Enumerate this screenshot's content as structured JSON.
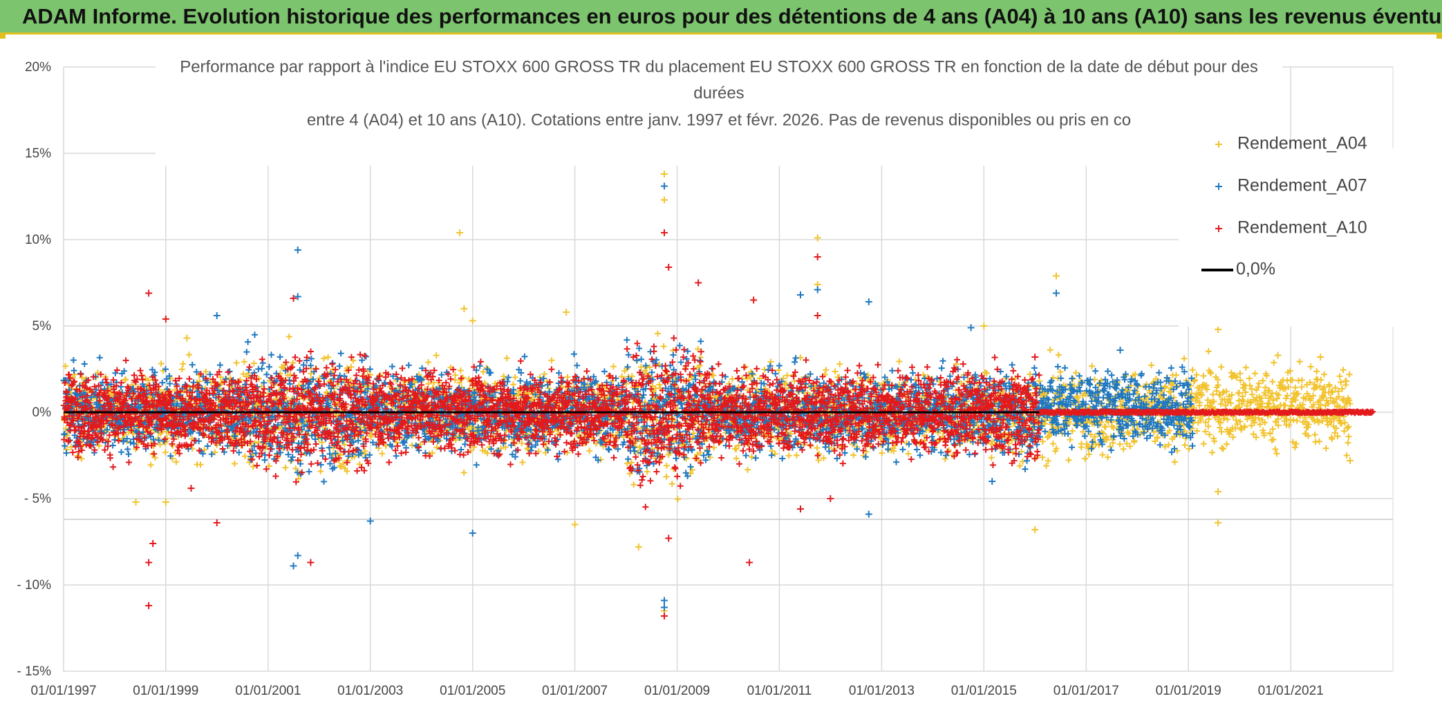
{
  "header": {
    "title": "ADAM Informe. Evolution historique des performances en euros pour des détentions de 4 ans (A04) à 10 ans (A10) sans les revenus éventuels"
  },
  "chart_data": {
    "type": "scatter",
    "title_lines": [
      "Performance par rapport à l'indice EU STOXX 600 GROSS TR  du placement EU STOXX 600 GROSS TR en fonction de la date de début pour des",
      "durées",
      "entre 4 (A04) et 10 ans (A10). Cotations entre janv. 1997 et févr. 2026. Pas de revenus disponibles ou pris en co"
    ],
    "x_tick_labels": [
      "01/01/1997",
      "01/01/1999",
      "01/01/2001",
      "01/01/2003",
      "01/01/2005",
      "01/01/2007",
      "01/01/2009",
      "01/01/2011",
      "01/01/2013",
      "01/01/2015",
      "01/01/2017",
      "01/01/2019",
      "01/01/2021"
    ],
    "y_tick_labels": [
      "20%",
      "15%",
      "10%",
      "5%",
      "0%",
      "- 5%",
      "- 10%",
      "- 15%"
    ],
    "x_range": [
      "1997-01-01",
      "2023-01-01"
    ],
    "ylim": [
      -15,
      20
    ],
    "grid": true,
    "legend_position": "right",
    "series": [
      {
        "name": "Rendement_A04",
        "color": "#f2c32e",
        "marker": "plus",
        "end": "2022-03-01",
        "points": [
          [
            "1998-06-01",
            -5.2
          ],
          [
            "1999-01-01",
            -5.2
          ],
          [
            "1999-06-01",
            4.3
          ],
          [
            "2004-10-01",
            10.4
          ],
          [
            "2004-11-01",
            6.0
          ],
          [
            "2005-01-01",
            5.3
          ],
          [
            "2006-11-01",
            5.8
          ],
          [
            "2007-01-01",
            -6.5
          ],
          [
            "2008-04-01",
            -7.8
          ],
          [
            "2008-10-01",
            13.8
          ],
          [
            "2008-10-01",
            12.3
          ],
          [
            "2008-10-01",
            -11.5
          ],
          [
            "2011-10-01",
            10.1
          ],
          [
            "2011-10-01",
            7.4
          ],
          [
            "2015-01-01",
            5.0
          ],
          [
            "2016-01-01",
            -6.8
          ],
          [
            "2016-06-01",
            7.9
          ],
          [
            "2019-08-01",
            7.0
          ],
          [
            "2019-08-01",
            4.8
          ],
          [
            "2019-08-01",
            -4.6
          ],
          [
            "2019-08-01",
            -6.4
          ],
          [
            "2020-10-01",
            3.3
          ],
          [
            "2021-08-01",
            3.2
          ],
          [
            "2022-03-01",
            -2.8
          ]
        ]
      },
      {
        "name": "Rendement_A07",
        "color": "#1f78c1",
        "marker": "plus",
        "end": "2019-02-01",
        "points": [
          [
            "2000-01-01",
            5.6
          ],
          [
            "2001-08-01",
            9.4
          ],
          [
            "2001-08-01",
            6.7
          ],
          [
            "2001-07-01",
            -8.9
          ],
          [
            "2001-08-01",
            -8.3
          ],
          [
            "2003-01-01",
            -6.3
          ],
          [
            "2005-01-01",
            -7.0
          ],
          [
            "2008-10-01",
            14.8
          ],
          [
            "2008-10-01",
            13.1
          ],
          [
            "2008-10-01",
            -10.9
          ],
          [
            "2008-10-01",
            -11.3
          ],
          [
            "2011-06-01",
            6.8
          ],
          [
            "2011-10-01",
            7.1
          ],
          [
            "2012-10-01",
            6.4
          ],
          [
            "2012-10-01",
            -5.9
          ],
          [
            "2014-10-01",
            4.9
          ],
          [
            "2016-06-01",
            6.9
          ],
          [
            "2017-09-01",
            3.6
          ],
          [
            "2015-03-01",
            -4.0
          ]
        ]
      },
      {
        "name": "Rendement_A10",
        "color": "#e31a1c",
        "marker": "plus",
        "end": "2016-02-01",
        "points": [
          [
            "1998-09-01",
            6.9
          ],
          [
            "1998-10-01",
            -7.6
          ],
          [
            "1998-09-01",
            -8.7
          ],
          [
            "1998-09-01",
            -11.2
          ],
          [
            "1999-01-01",
            5.4
          ],
          [
            "1999-07-01",
            -4.4
          ],
          [
            "2000-01-01",
            -6.4
          ],
          [
            "2001-07-01",
            6.6
          ],
          [
            "2001-11-01",
            -8.7
          ],
          [
            "2008-10-01",
            10.4
          ],
          [
            "2008-11-01",
            8.4
          ],
          [
            "2008-10-01",
            -11.8
          ],
          [
            "2008-11-01",
            -7.3
          ],
          [
            "2009-06-01",
            7.5
          ],
          [
            "2010-06-01",
            -8.7
          ],
          [
            "2010-07-01",
            6.5
          ],
          [
            "2011-06-01",
            -5.6
          ],
          [
            "2011-10-01",
            9.0
          ],
          [
            "2011-10-01",
            5.6
          ],
          [
            "2012-01-01",
            -5.0
          ],
          [
            "2016-01-01",
            3.2
          ]
        ]
      },
      {
        "name": "0,0%",
        "color": "#000000",
        "marker": "line",
        "x": [
          "1997-01-01",
          "2016-02-01"
        ],
        "y": [
          0,
          0
        ]
      }
    ]
  }
}
